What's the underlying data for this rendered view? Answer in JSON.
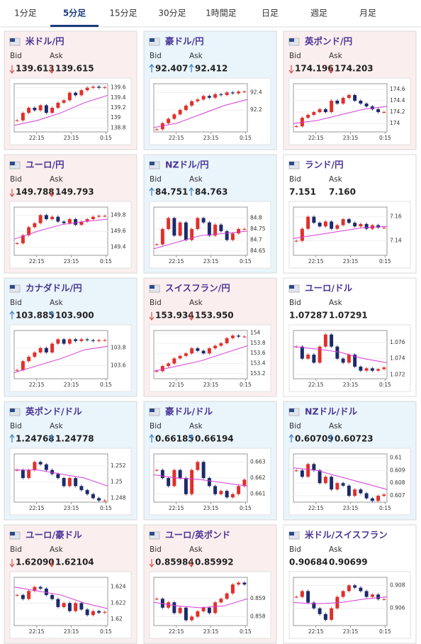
{
  "tabs": {
    "items": [
      "1分足",
      "5分足",
      "15分足",
      "30分足",
      "1時間足",
      "日足",
      "週足",
      "月足"
    ],
    "active": 1
  },
  "bid_label": "Bid",
  "ask_label": "Ask",
  "cards": [
    {
      "pair": "米ドル/円",
      "trend": "down",
      "bid": 139.613,
      "ask": 139.615,
      "chart": {
        "ylim": [
          138.72,
          139.68
        ],
        "yticks": [
          139.6,
          139.4,
          139.2,
          139,
          138.8
        ],
        "xticks": [
          "22:15",
          "23:15",
          "0:15"
        ],
        "closes": [
          138.95,
          139.1,
          139.2,
          139.15,
          139.25,
          139.1,
          139.2,
          139.3,
          139.35,
          139.5,
          139.45,
          139.55,
          139.6,
          139.62,
          139.6,
          139.61
        ],
        "ma": [
          138.85,
          138.95,
          139.1,
          139.3,
          139.45
        ]
      }
    },
    {
      "pair": "豪ドル/円",
      "trend": "up",
      "bid": 92.407,
      "ask": 92.412,
      "chart": {
        "ylim": [
          91.95,
          92.5
        ],
        "yticks": [
          92.4,
          92.2
        ],
        "xticks": [
          "22:15",
          "23:15",
          "0:15"
        ],
        "closes": [
          91.98,
          92.05,
          92.1,
          92.15,
          92.2,
          92.25,
          92.3,
          92.32,
          92.36,
          92.34,
          92.38,
          92.37,
          92.4,
          92.39,
          92.41,
          92.41
        ],
        "ma": [
          92.0,
          92.05,
          92.15,
          92.25,
          92.32
        ]
      }
    },
    {
      "pair": "英ポンド/円",
      "trend": "down",
      "bid": 174.196,
      "ask": 174.203,
      "chart": {
        "ylim": [
          173.85,
          174.7
        ],
        "yticks": [
          174.6,
          174.4,
          174.2,
          174
        ],
        "xticks": [
          "22:15",
          "23:15",
          "0:15"
        ],
        "closes": [
          173.95,
          174.1,
          174.15,
          174.2,
          174.25,
          174.2,
          174.4,
          174.35,
          174.45,
          174.5,
          174.4,
          174.35,
          174.3,
          174.25,
          174.2,
          174.2
        ],
        "ma": [
          174.0,
          174.05,
          174.15,
          174.25,
          174.3
        ]
      }
    },
    {
      "pair": "ユーロ/円",
      "trend": "down",
      "bid": 149.788,
      "ask": 149.793,
      "chart": {
        "ylim": [
          149.3,
          149.9
        ],
        "yticks": [
          149.8,
          149.6,
          149.4
        ],
        "xticks": [
          "22:15",
          "23:15",
          "0:15"
        ],
        "closes": [
          149.45,
          149.55,
          149.65,
          149.7,
          149.8,
          149.75,
          149.78,
          149.72,
          149.7,
          149.75,
          149.68,
          149.72,
          149.75,
          149.78,
          149.79,
          149.79
        ],
        "ma": [
          149.5,
          149.6,
          149.68,
          149.72,
          149.75
        ]
      }
    },
    {
      "pair": "NZドル/円",
      "trend": "up",
      "bid": 84.751,
      "ask": 84.763,
      "chart": {
        "ylim": [
          84.63,
          84.85
        ],
        "yticks": [
          84.8,
          84.75,
          84.7,
          84.65
        ],
        "xticks": [
          "22:15",
          "23:15",
          "0:15"
        ],
        "closes": [
          84.68,
          84.75,
          84.8,
          84.72,
          84.78,
          84.7,
          84.75,
          84.8,
          84.78,
          84.72,
          84.77,
          84.74,
          84.7,
          84.73,
          84.75,
          84.75
        ],
        "ma": [
          84.66,
          84.69,
          84.72,
          84.73,
          84.74
        ]
      }
    },
    {
      "pair": "ランド/円",
      "trend": null,
      "bid": 7.151,
      "ask": {
        "value": 7.16,
        "label": "7.160"
      },
      "chart": {
        "ylim": [
          7.128,
          7.168
        ],
        "yticks": [
          7.16,
          7.14
        ],
        "xticks": [
          "22:15",
          "23:15",
          "0:15"
        ],
        "closes": [
          7.14,
          7.15,
          7.16,
          7.155,
          7.152,
          7.156,
          7.15,
          7.153,
          7.158,
          7.155,
          7.152,
          7.154,
          7.15,
          7.153,
          7.151,
          7.151
        ],
        "ma": [
          7.142,
          7.145,
          7.148,
          7.151,
          7.152
        ]
      }
    },
    {
      "pair": "カナダドル/円",
      "trend": "up",
      "bid": 103.885,
      "ask": {
        "value": 103.9,
        "label": "103.900"
      },
      "chart": {
        "ylim": [
          103.45,
          104.0
        ],
        "yticks": [
          103.8,
          103.6
        ],
        "xticks": [
          "22:15",
          "23:15",
          "0:15"
        ],
        "closes": [
          103.55,
          103.65,
          103.7,
          103.75,
          103.8,
          103.75,
          103.85,
          103.9,
          103.85,
          103.9,
          103.88,
          103.9,
          103.89,
          103.88,
          103.89,
          103.89
        ],
        "ma": [
          103.52,
          103.6,
          103.68,
          103.78,
          103.82
        ]
      }
    },
    {
      "pair": "スイスフラン/円",
      "trend": "down",
      "bid": 153.934,
      "ask": {
        "value": 153.95,
        "label": "153.950"
      },
      "chart": {
        "ylim": [
          153.1,
          154.05
        ],
        "yticks": [
          154,
          153.8,
          153.6,
          153.4,
          153.2
        ],
        "xticks": [
          "22:15",
          "23:15",
          "0:15"
        ],
        "closes": [
          153.25,
          153.35,
          153.4,
          153.5,
          153.55,
          153.6,
          153.7,
          153.65,
          153.6,
          153.7,
          153.75,
          153.8,
          153.9,
          153.95,
          153.93,
          153.93
        ],
        "ma": [
          153.25,
          153.35,
          153.45,
          153.6,
          153.75
        ]
      }
    },
    {
      "pair": "ユーロ/ドル",
      "trend": null,
      "bid": 1.07287,
      "ask": 1.07291,
      "chart": {
        "ylim": [
          1.0715,
          1.0775
        ],
        "yticks": [
          1.076,
          1.074,
          1.072
        ],
        "xticks": [
          "22:15",
          "23:15",
          "0:15"
        ],
        "closes": [
          1.0755,
          1.074,
          1.0745,
          1.0735,
          1.0755,
          1.077,
          1.0755,
          1.074,
          1.0735,
          1.0745,
          1.073,
          1.0725,
          1.0728,
          1.0725,
          1.0727,
          1.0729
        ],
        "ma": [
          1.0755,
          1.0752,
          1.0748,
          1.074,
          1.0735
        ]
      }
    },
    {
      "pair": "英ポンド/ドル",
      "trend": "up",
      "bid": 1.24768,
      "ask": 1.24778,
      "chart": {
        "ylim": [
          1.2475,
          1.2535
        ],
        "yticks": [
          1.252,
          1.25,
          1.248
        ],
        "xticks": [
          "22:15",
          "23:15",
          "0:15"
        ],
        "closes": [
          1.2515,
          1.2505,
          1.2515,
          1.2525,
          1.2522,
          1.2515,
          1.251,
          1.2505,
          1.2495,
          1.2505,
          1.2495,
          1.249,
          1.2485,
          1.248,
          1.2477,
          1.2477
        ],
        "ma": [
          1.2515,
          1.2515,
          1.251,
          1.2505,
          1.2495
        ]
      }
    },
    {
      "pair": "豪ドル/ドル",
      "trend": "up",
      "bid": 0.66185,
      "ask": 0.66194,
      "chart": {
        "ylim": [
          0.6605,
          0.6635
        ],
        "yticks": [
          0.663,
          0.662,
          0.661
        ],
        "xticks": [
          "22:15",
          "23:15",
          "0:15"
        ],
        "closes": [
          0.6625,
          0.662,
          0.6615,
          0.6625,
          0.662,
          0.661,
          0.6625,
          0.663,
          0.662,
          0.6615,
          0.661,
          0.6612,
          0.6608,
          0.661,
          0.6615,
          0.6619
        ],
        "ma": [
          0.6622,
          0.662,
          0.6619,
          0.6617,
          0.6615
        ]
      }
    },
    {
      "pair": "NZドル/ドル",
      "trend": "up",
      "bid": 0.60709,
      "ask": 0.60723,
      "chart": {
        "ylim": [
          0.6065,
          0.6103
        ],
        "yticks": [
          0.61,
          0.609,
          0.608,
          0.607
        ],
        "xticks": [
          "22:15",
          "23:15",
          "0:15"
        ],
        "closes": [
          0.609,
          0.6085,
          0.6095,
          0.609,
          0.608,
          0.6085,
          0.6075,
          0.608,
          0.6078,
          0.607,
          0.6075,
          0.6072,
          0.6068,
          0.6066,
          0.607,
          0.6071
        ],
        "ma": [
          0.6092,
          0.609,
          0.6085,
          0.608,
          0.6075
        ]
      }
    },
    {
      "pair": "ユーロ/豪ドル",
      "trend": "down",
      "bid": {
        "value": 1.6209,
        "label": "1.62090"
      },
      "ask": 1.62104,
      "chart": {
        "ylim": [
          1.6192,
          1.6252
        ],
        "yticks": [
          1.624,
          1.622,
          1.62
        ],
        "xticks": [
          "22:15",
          "23:15",
          "0:15"
        ],
        "closes": [
          1.623,
          1.6225,
          1.6235,
          1.624,
          1.6238,
          1.623,
          1.6225,
          1.6215,
          1.622,
          1.621,
          1.622,
          1.6212,
          1.6205,
          1.621,
          1.6208,
          1.6209
        ],
        "ma": [
          1.624,
          1.6235,
          1.623,
          1.622,
          1.6213
        ]
      }
    },
    {
      "pair": "ユーロ/英ポンド",
      "trend": "down",
      "bid": 0.85984,
      "ask": 0.85992,
      "chart": {
        "ylim": [
          0.8575,
          0.8602
        ],
        "yticks": [
          0.859,
          0.858
        ],
        "xticks": [
          "22:15",
          "23:15",
          "0:15"
        ],
        "closes": [
          0.859,
          0.8585,
          0.8588,
          0.8582,
          0.8585,
          0.8578,
          0.858,
          0.8583,
          0.8585,
          0.8582,
          0.8588,
          0.859,
          0.8593,
          0.8598,
          0.8599,
          0.8598
        ],
        "ma": [
          0.8588,
          0.8586,
          0.8585,
          0.8586,
          0.859
        ]
      }
    },
    {
      "pair": "米ドル/スイスフラン",
      "trend": null,
      "bid": 0.90684,
      "ask": 0.90699,
      "chart": {
        "ylim": [
          0.9045,
          0.9087
        ],
        "yticks": [
          0.908,
          0.906
        ],
        "xticks": [
          "22:15",
          "23:15",
          "0:15"
        ],
        "closes": [
          0.907,
          0.9075,
          0.9065,
          0.906,
          0.9055,
          0.905,
          0.906,
          0.907,
          0.9075,
          0.908,
          0.9078,
          0.9075,
          0.907,
          0.9072,
          0.9068,
          0.9068
        ],
        "ma": [
          0.9065,
          0.9064,
          0.9065,
          0.9068,
          0.907
        ]
      }
    }
  ]
}
